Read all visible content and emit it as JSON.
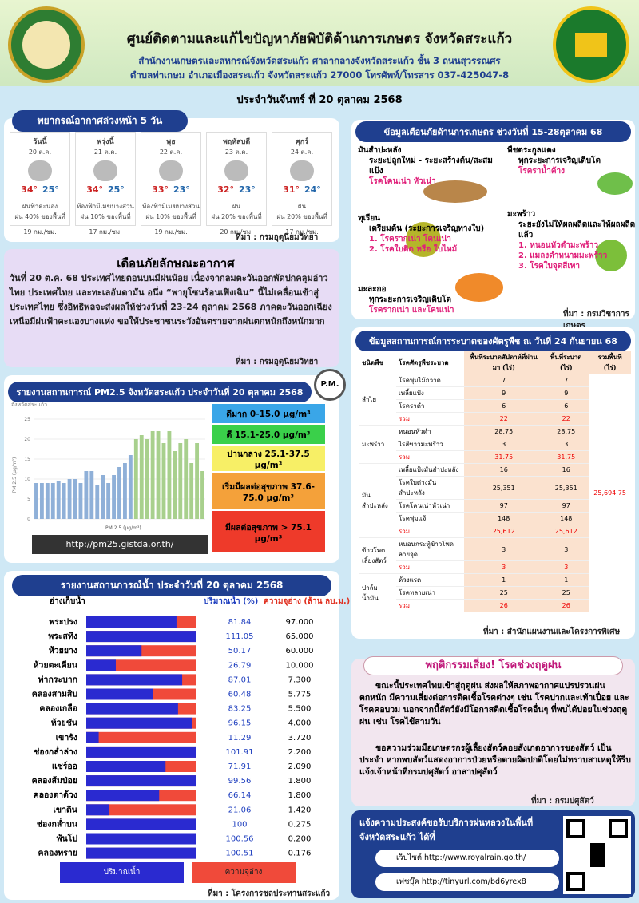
{
  "header": {
    "title": "ศูนย์ติดตามและแก้ไขปัญหาภัยพิบัติด้านการเกษตร จังหวัดสระแก้ว",
    "subtitle1": "สำนักงานเกษตรและสหกรณ์จังหวัดสระแก้ว ศาลากลางจังหวัดสระแก้ว ชั้น 3 ถนนสุวรรณศร",
    "subtitle2": "ตำบลท่าเกษม อำเภอเมืองสระแก้ว จังหวัดสระแก้ว 27000 โทรศัพท์/โทรสาร 037-425047-8",
    "date": "ประจำวันจันทร์ ที่ 20 ตุลาคม 2568"
  },
  "weather": {
    "title": "พยากรณ์อากาศล่วงหน้า 5 วัน",
    "days": [
      {
        "name": "วันนี้",
        "date": "20 ต.ค.",
        "high": "34°",
        "low": "25°",
        "desc": "ฝนฟ้าคะนอง",
        "rain": "ฝน 40% ของพื้นที่",
        "wind": "19 กม./ชม."
      },
      {
        "name": "พรุ่งนี้",
        "date": "21 ต.ค.",
        "high": "34°",
        "low": "25°",
        "desc": "ท้องฟ้ามีเมฆบางส่วน",
        "rain": "ฝน 10% ของพื้นที่",
        "wind": "17 กม./ชม."
      },
      {
        "name": "พุธ",
        "date": "22 ต.ค.",
        "high": "33°",
        "low": "23°",
        "desc": "ท้องฟ้ามีเมฆบางส่วน",
        "rain": "ฝน 10% ของพื้นที่",
        "wind": "19 กม./ชม."
      },
      {
        "name": "พฤหัสบดี",
        "date": "23 ต.ค.",
        "high": "32°",
        "low": "23°",
        "desc": "ฝน",
        "rain": "ฝน 20% ของพื้นที่",
        "wind": "20 กม./ชม."
      },
      {
        "name": "ศุกร์",
        "date": "24 ต.ค.",
        "high": "31°",
        "low": "24°",
        "desc": "ฝน",
        "rain": "ฝน 20% ของพื้นที่",
        "wind": "17 กม./ชม."
      }
    ],
    "source": "ที่มา : กรมอุตุนิยมวิทยา"
  },
  "warning": {
    "title": "เตือนภัยลักษณะอากาศ",
    "body": "วันที่ 20 ต.ค. 68 ประเทศไทยตอนบนมีฝนน้อย เนื่องจากลมตะวันออกพัดปกคลุมอ่าวไทย ประเทศไทย และทะเลอันดามัน อนึ่ง “พายุโซนร้อนเฟิงเฉิน” นี้ไม่เคลื่อนเข้าสู่ประเทศไทย ซึ่งอิทธิพลจะส่งผลให้ช่วงวันที่ 23-24 ตุลาคม 2568 ภาคตะวันออกเฉียงเหนือมีฝนฟ้าคะนองบางแห่ง ขอให้ประชาชนระวังอันตรายจากฝนตกหนักถึงหนักมาก",
    "source": "ที่มา : กรมอุตุนิยมวิทยา"
  },
  "pm25": {
    "title": "รายงานสถานการณ์ PM2.5 จังหวัดสระแก้ว ประจำวันที่ 20 ตุลาคม 2568",
    "badge": "P.M.",
    "chart_data": {
      "type": "bar",
      "title": "จังหวัดสระแก้ว",
      "y_label": "PM 2.5 (µg/m³)",
      "series_name": "PM 2.5 (µg/m³)",
      "color": "#a8d08d",
      "ylim": [
        0,
        27
      ],
      "yticks": [
        0,
        5,
        10,
        15,
        20,
        25
      ],
      "values": [
        9,
        9,
        9,
        9,
        9.5,
        9,
        10,
        10,
        9,
        12,
        12,
        8.5,
        11,
        9,
        11,
        13,
        14,
        16,
        20,
        21,
        20,
        22,
        22,
        19,
        22,
        17,
        19,
        20,
        14,
        19,
        12
      ]
    },
    "levels": [
      "ดีมาก 0-15.0 µg/m³",
      "ดี 15.1-25.0 µg/m³",
      "ปานกลาง 25.1-37.5 µg/m³",
      "เริ่มมีผลต่อสุขภาพ 37.6-75.0 µg/m³",
      "มีผลต่อสุขภาพ > 75.1 µg/m³"
    ],
    "url": "http://pm25.gistda.or.th/"
  },
  "water": {
    "title": "รายงานสถานการณ์น้ำ ประจำวันที่ 20 ตุลาคม 2568",
    "col_name": "อ่างเก็บน้ำ",
    "col_pct": "ปริมาณน้ำ (%)",
    "col_cap": "ความจุอ่าง (ล้าน ลบ.ม.)",
    "rows": [
      [
        "พระปรง",
        81.84,
        "97.000"
      ],
      [
        "พระสทึง",
        111.05,
        "65.000"
      ],
      [
        "ห้วยยาง",
        50.17,
        "60.000"
      ],
      [
        "ห้วยตะเคียน",
        26.79,
        "10.000"
      ],
      [
        "ท่ากระบาก",
        87.01,
        "7.300"
      ],
      [
        "คลองสามสิบ",
        60.48,
        "5.775"
      ],
      [
        "คลองเกลือ",
        83.25,
        "5.500"
      ],
      [
        "ห้วยชัน",
        96.15,
        "4.000"
      ],
      [
        "เขารัง",
        11.29,
        "3.720"
      ],
      [
        "ช่องกล่ำล่าง",
        101.91,
        "2.200"
      ],
      [
        "แซร์ออ",
        71.91,
        "2.090"
      ],
      [
        "คลองส้มป่อย",
        99.56,
        "1.800"
      ],
      [
        "คลองตาด้วง",
        66.14,
        "1.800"
      ],
      [
        "เขาดิน",
        21.06,
        "1.420"
      ],
      [
        "ช่องกล่ำบน",
        100.0,
        "0.275"
      ],
      [
        "พันโป",
        100.56,
        "0.200"
      ],
      [
        "คลองทราย",
        100.51,
        "0.176"
      ]
    ],
    "legend_pct": "ปริมาณน้ำ",
    "legend_cap": "ความจุอ่าง",
    "source": "ที่มา : โครงการชลประทานสระแก้ว"
  },
  "alerts": {
    "title": "ข้อมูลเตือนภัยด้านการเกษตร ช่วงวันที่ 15-28ตุลาคม 68",
    "items": [
      {
        "crop": "มันสำปะหลัง",
        "stage": "ระยะปลูกใหม่ - ระยะสร้างต้น/สะสมแป้ง",
        "risks": [
          "โรคโคนเน่า หัวเน่า"
        ]
      },
      {
        "crop": "พืชตระกูลแตง",
        "stage": "ทุกระยะการเจริญเติบโต",
        "risks": [
          "โรคราน้ำค้าง"
        ]
      },
      {
        "crop": "ทุเรียน",
        "stage": "เตรียมต้น (ระยะการเจริญทางใบ)",
        "risks": [
          "1. โรครากเน่า โคนเน่า",
          "2. โรคใบติด หรือ ใบไหม้"
        ]
      },
      {
        "crop": "มะพร้าว",
        "stage": "ระยะยังไม่ให้ผลผลิตและให้ผลผลิตแล้ว",
        "risks": [
          "1. หนอนหัวดำมะพร้าว",
          "2. แมลงดำหนามมะพร้าว",
          "3. โรคใบจุดสีเทา"
        ]
      },
      {
        "crop": "มะละกอ",
        "stage": "ทุกระยะการเจริญเติบโต",
        "risks": [
          "โรครากเน่า และโคนเน่า"
        ]
      }
    ],
    "source": "ที่มา : กรมวิชาการเกษตร"
  },
  "pests": {
    "title": "ข้อมูลสถานการณ์การระบาดของศัตรูพืช ณ วันที่ 24 กันยายน 68",
    "headers": [
      "ชนิดพืช",
      "โรคศัตรูพืชระบาด",
      "พื้นที่ระบาดสัปดาห์ที่ผ่านมา (ไร่)",
      "พื้นที่ระบาด (ไร่)",
      "รวมพื้นที่ (ไร่)"
    ],
    "grand_total": "25,694.75",
    "groups": [
      {
        "crop": "ลำไย",
        "rows": [
          [
            "โรคพุ่มไม้กวาด",
            "7",
            "7"
          ],
          [
            "เพลี้ยแป้ง",
            "9",
            "9"
          ],
          [
            "โรคราดำ",
            "6",
            "6"
          ]
        ],
        "sum": [
          "รวม",
          "22",
          "22"
        ]
      },
      {
        "crop": "มะพร้าว",
        "rows": [
          [
            "หนอนหัวดำ",
            "28.75",
            "28.75"
          ],
          [
            "ไรสีขาวมะพร้าว",
            "3",
            "3"
          ]
        ],
        "sum": [
          "รวม",
          "31.75",
          "31.75"
        ]
      },
      {
        "crop": "มันสำปะหลัง",
        "rows": [
          [
            "เพลี้ยแป้งมันสำปะหลัง",
            "16",
            "16"
          ],
          [
            "โรคใบด่างมันสำปะหลัง",
            "25,351",
            "25,351"
          ],
          [
            "โรคโคนเน่าหัวเน่า",
            "97",
            "97"
          ],
          [
            "โรคพุ่มแจ้",
            "148",
            "148"
          ]
        ],
        "sum": [
          "รวม",
          "25,612",
          "25,612"
        ]
      },
      {
        "crop": "ข้าวโพดเลี้ยงสัตว์",
        "rows": [
          [
            "หนอนกระทู้ข้าวโพดลายจุด",
            "3",
            "3"
          ]
        ],
        "sum": [
          "รวม",
          "3",
          "3"
        ]
      },
      {
        "crop": "ปาล์มน้ำมัน",
        "rows": [
          [
            "ด้วงแรด",
            "1",
            "1"
          ],
          [
            "โรคทลายเน่า",
            "25",
            "25"
          ]
        ],
        "sum": [
          "รวม",
          "26",
          "26"
        ]
      }
    ],
    "source": "ที่มา : สำนักแผนงานและโครงการพิเศษ"
  },
  "disease": {
    "title": "พฤติกรรมเสี่ยง! โรคช่วงฤดูฝน",
    "p1": "ขณะนี้ประเทศไทยเข้าสู่ฤดูฝน ส่งผลให้สภาพอากาศแปรปรวนฝนตกหนัก มีความเสี่ยงต่อการติดเชื้อโรคต่างๆ เช่น โรคปากและเท้าเปื่อย และโรคคอบวม นอกจากนี้สัตว์ยังมีโอกาสติดเชื้อโรคอื่นๆ ที่พบได้บ่อยในช่วงฤดูฝน เช่น โรคไข้สามวัน",
    "p2": "ขอความร่วมมือเกษตรกรผู้เลี้ยงสัตว์คอยสังเกตอาการของสัตว์ เป็นประจำ หากพบสัตว์แสดงอาการป่วยหรือตายผิดปกติโดยไม่ทราบสาเหตุให้รีบแจ้งเจ้าหน้าที่กรมปศุสัตว์ อาสาปศุสัตว์",
    "source": "ที่มา : กรมปศุสัตว์"
  },
  "rain": {
    "title": "แจ้งความประสงค์ขอรับบริการฝนหลวงในพื้นที่ จังหวัดสระแก้ว ได้ที่",
    "website": "เว็บไซต์ http://www.royalrain.go.th/",
    "facebook": "เฟซบุ๊ค http://tinyurl.com/bd6yrex8"
  }
}
